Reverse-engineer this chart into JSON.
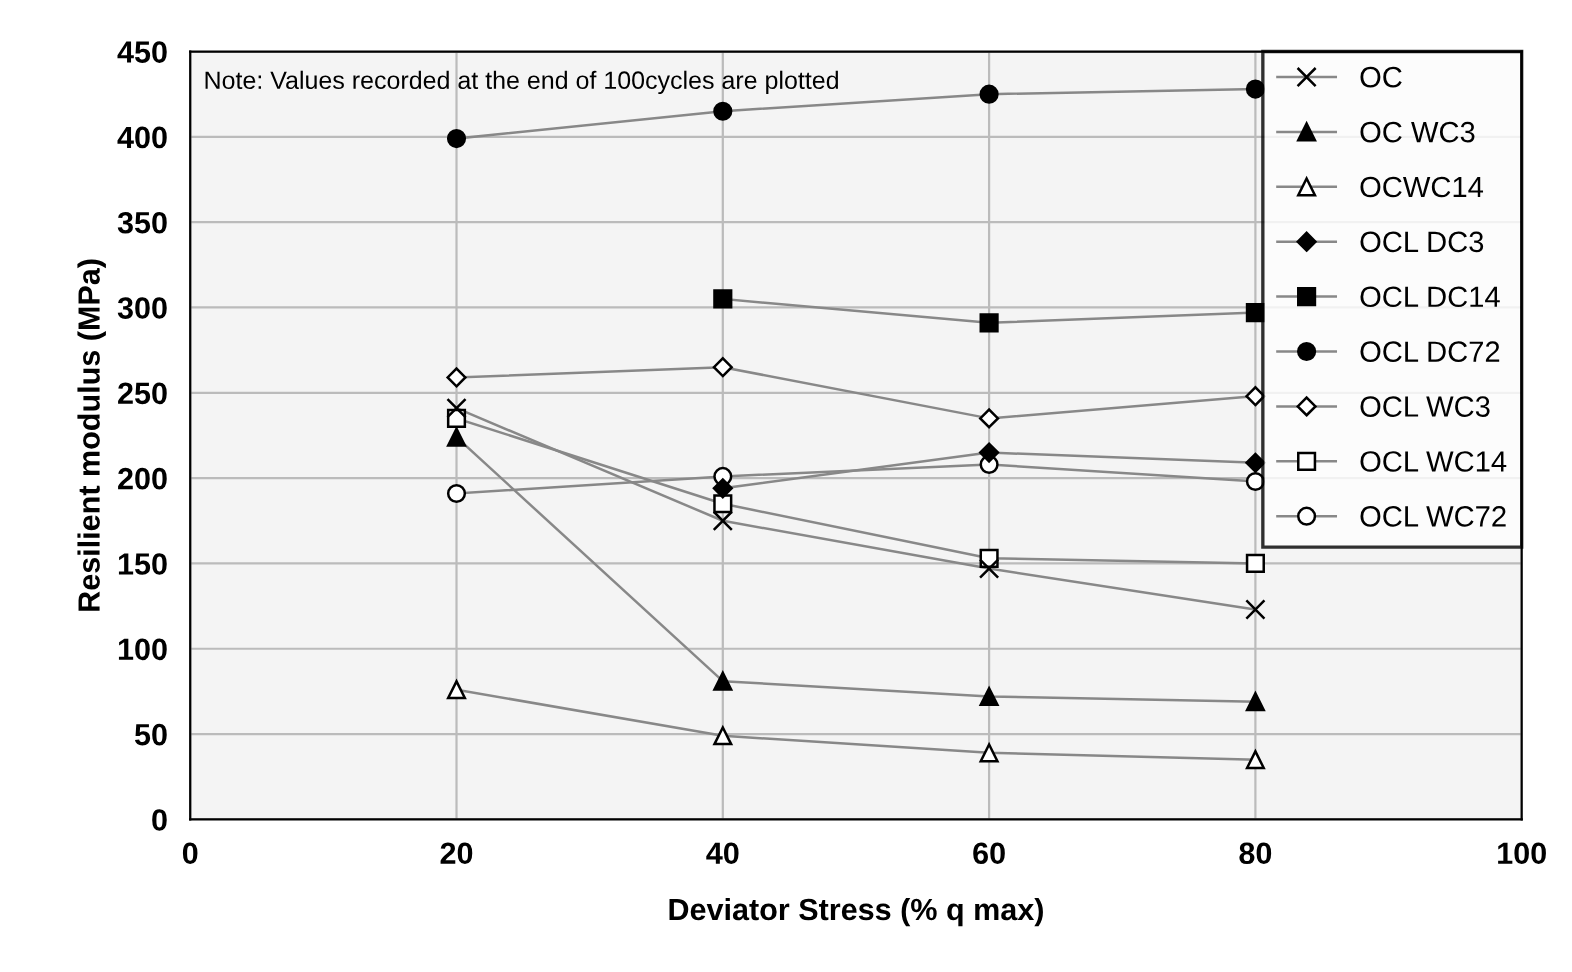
{
  "chart_data": {
    "type": "line",
    "xlabel": "Deviator Stress (% q max)",
    "ylabel": "Resilient modulus (MPa)",
    "annotations": [
      "Note: Values recorded at the end of 100cycles are plotted"
    ],
    "x": [
      20,
      40,
      60,
      80
    ],
    "xlim": [
      0,
      100
    ],
    "xticks": [
      0,
      20,
      40,
      60,
      80,
      100
    ],
    "ylim": [
      0,
      450
    ],
    "yticks": [
      0,
      50,
      100,
      150,
      200,
      250,
      300,
      350,
      400,
      450
    ],
    "grid": true,
    "legend": "top right",
    "line_style": "solid",
    "series": [
      {
        "name": "OC",
        "color": "#000000",
        "marker": "cross",
        "colors": [
          "#000000",
          "#000000",
          "#000000",
          "#000000"
        ],
        "values": [
          241,
          175,
          147,
          123
        ]
      },
      {
        "name": "OC WC3",
        "color": "#000000",
        "marker": "triangle",
        "colors": [
          "#000000",
          "#000000",
          "#000000",
          "#000000"
        ],
        "values": [
          224,
          81,
          72,
          69
        ]
      },
      {
        "name": "OCWC14",
        "color": "#000000",
        "marker": "triangle",
        "colors": [
          "#ffffff",
          "#ffffff",
          "#ffffff",
          "#ffffff"
        ],
        "values": [
          76,
          49,
          39,
          35
        ]
      },
      {
        "name": "OCL DC3",
        "color": "#000000",
        "marker": "diamond",
        "colors": [
          "#000000",
          "#000000",
          "#000000",
          "#000000"
        ],
        "values": [
          null,
          194,
          215,
          209
        ]
      },
      {
        "name": "OCL DC14",
        "color": "#000000",
        "marker": "square",
        "colors": [
          "#000000",
          "#000000",
          "#000000",
          "#000000"
        ],
        "values": [
          null,
          305,
          291,
          297
        ]
      },
      {
        "name": "OCL DC72",
        "color": "#000000",
        "marker": "circle",
        "colors": [
          "#000000",
          "#000000",
          "#000000",
          "#000000"
        ],
        "values": [
          399,
          415,
          425,
          428
        ]
      },
      {
        "name": "OCL WC3",
        "color": "#000000",
        "marker": "diamond",
        "colors": [
          "#ffffff",
          "#ffffff",
          "#ffffff",
          "#ffffff"
        ],
        "values": [
          259,
          265,
          235,
          248
        ]
      },
      {
        "name": "OCL WC14",
        "color": "#000000",
        "marker": "square",
        "colors": [
          "#ffffff",
          "#ffffff",
          "#ffffff",
          "#ffffff"
        ],
        "values": [
          235,
          185,
          153,
          150
        ]
      },
      {
        "name": "OCL WC72",
        "color": "#000000",
        "marker": "circle",
        "colors": [
          "#ffffff",
          "#ffffff",
          "#ffffff",
          "#ffffff"
        ],
        "values": [
          191,
          201,
          208,
          198
        ]
      }
    ]
  }
}
